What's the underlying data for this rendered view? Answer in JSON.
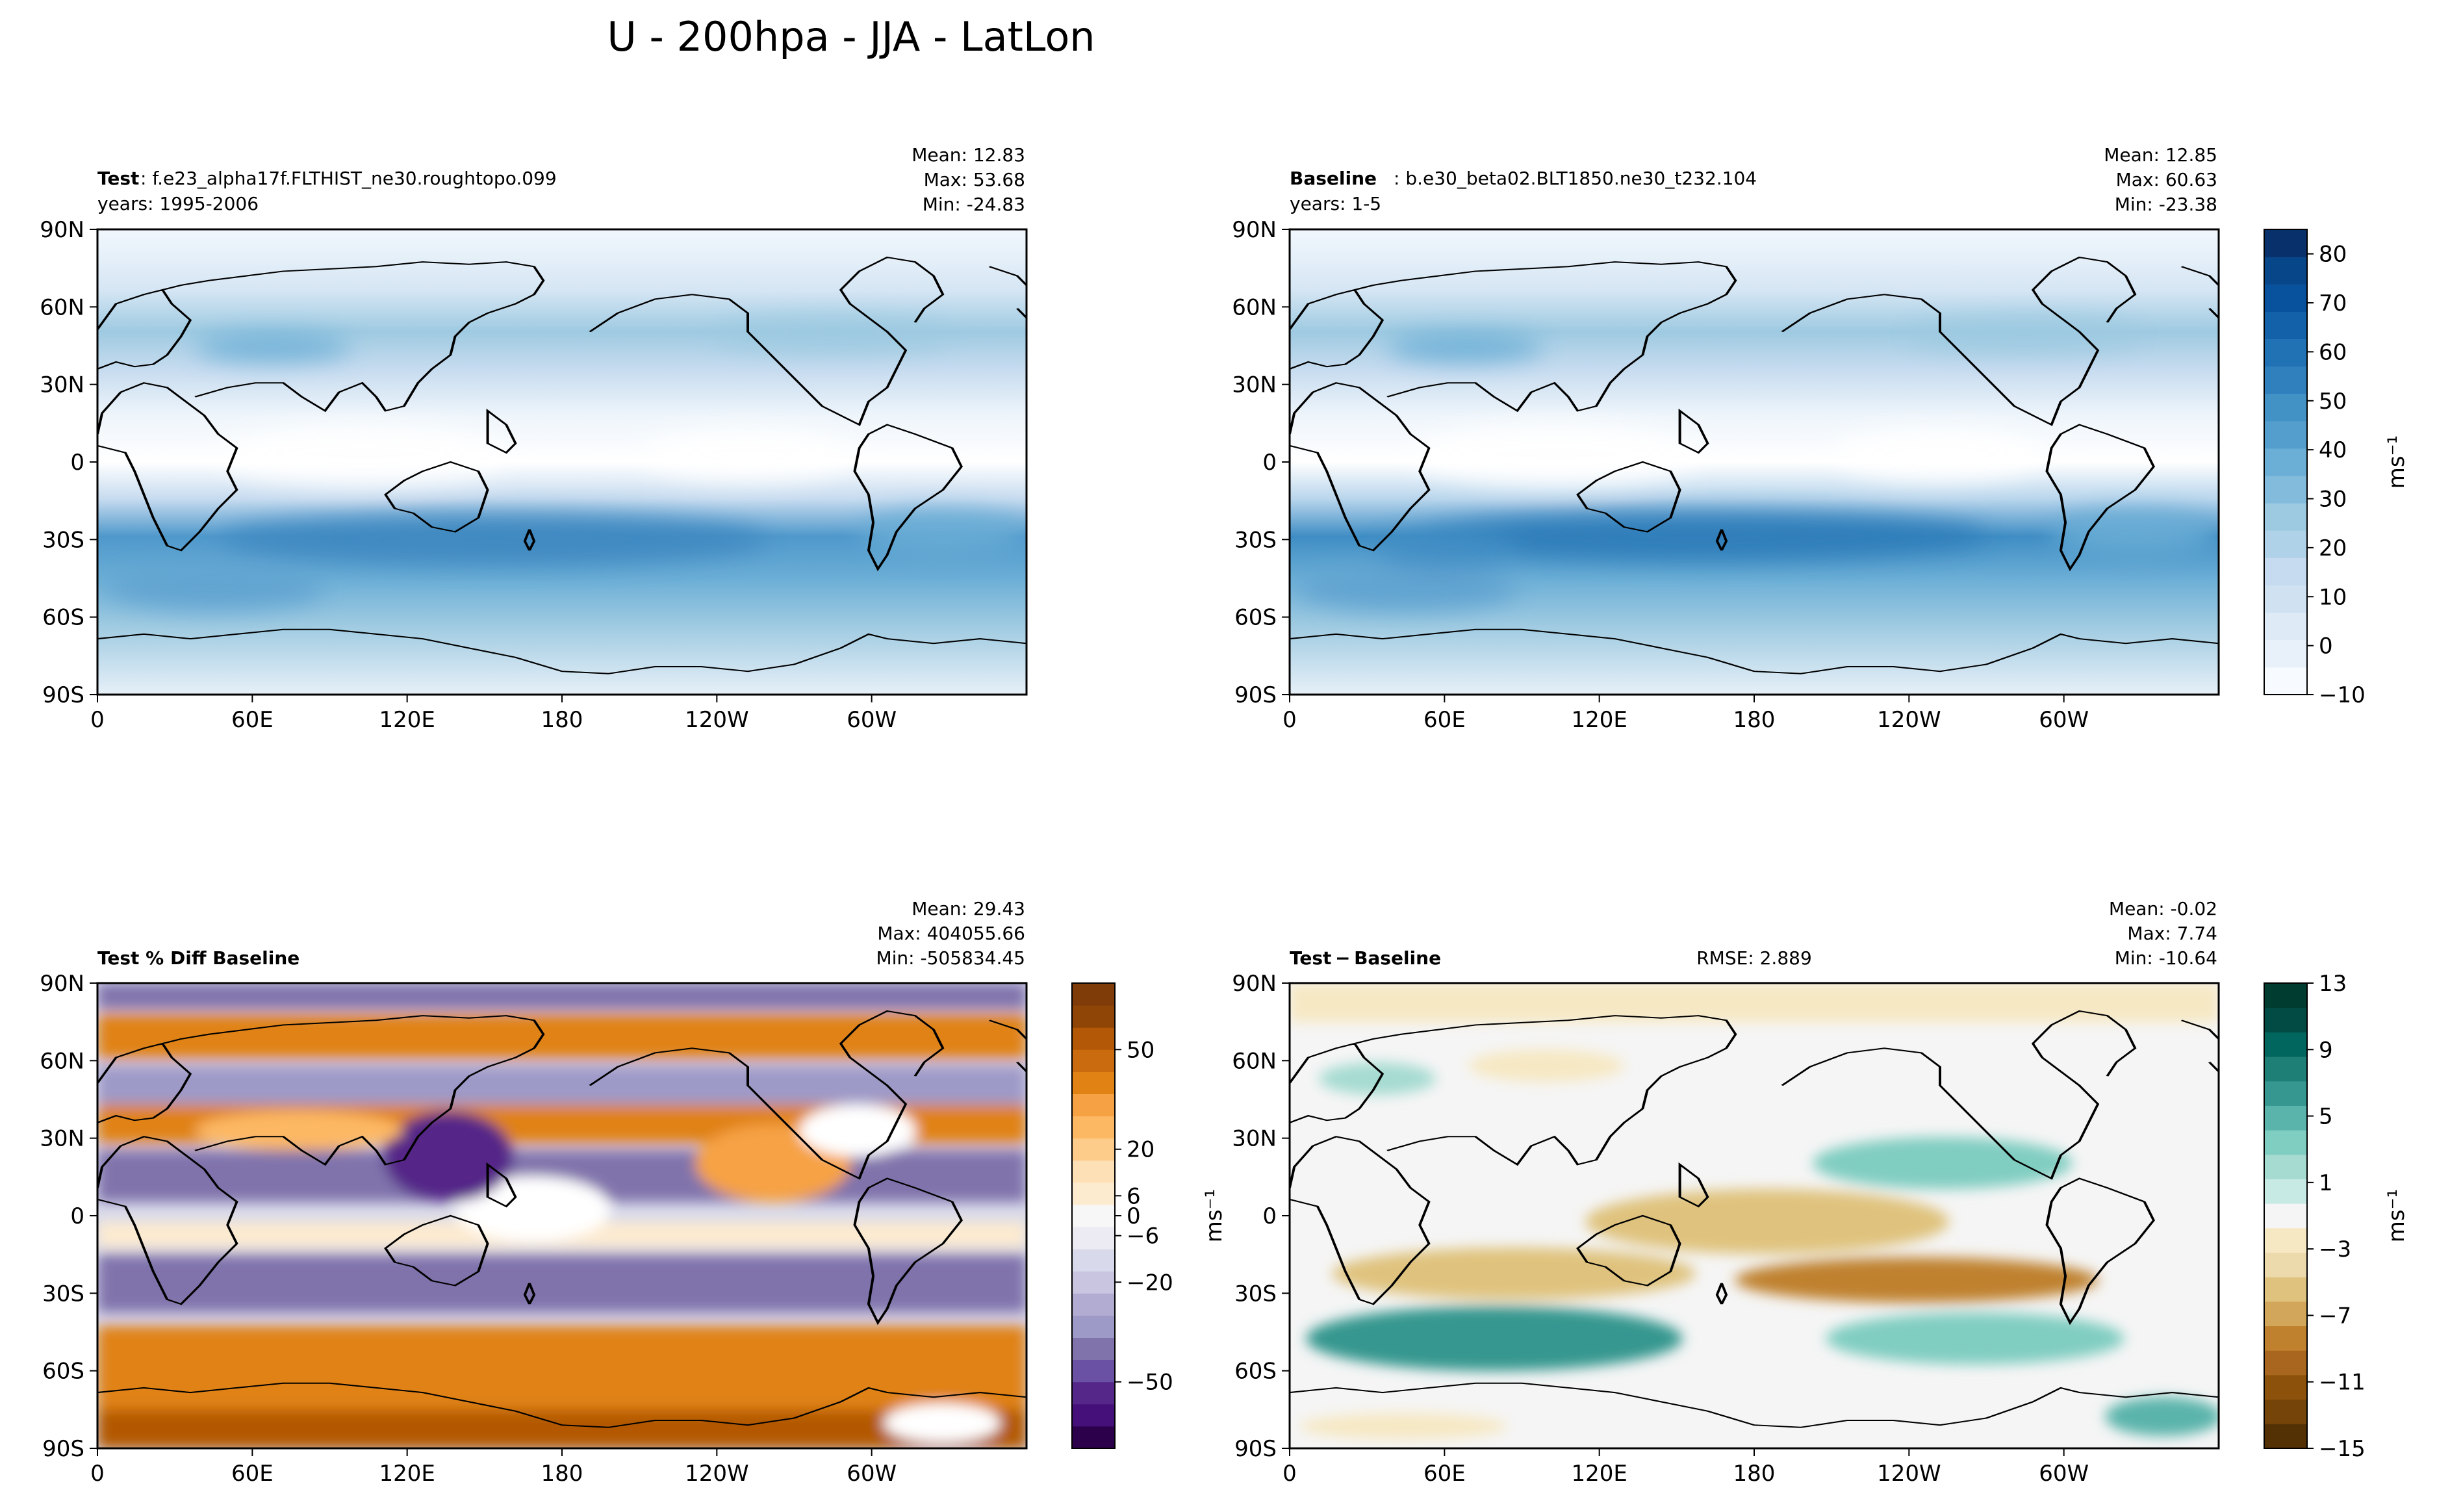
{
  "figure": {
    "title": "U - 200hpa - JJA - LatLon"
  },
  "colors": {
    "blues_scale": [
      "#f7fbff",
      "#e8f1fa",
      "#deebf7",
      "#d0e2f2",
      "#c6dbef",
      "#b0d2e8",
      "#9ecae1",
      "#82bbdb",
      "#6baed6",
      "#539ecd",
      "#4292c6",
      "#3080bd",
      "#2171b5",
      "#1361a9",
      "#08519c",
      "#08468a",
      "#08306b"
    ],
    "puor_scale": [
      "#2d004b",
      "#45107a",
      "#542788",
      "#6a51a3",
      "#8073ac",
      "#9e9ac8",
      "#b2abd2",
      "#c9c5e1",
      "#d8daeb",
      "#eceaf3",
      "#f7f7f7",
      "#fdebd0",
      "#fee0b6",
      "#fdcc8a",
      "#fdb863",
      "#f6a244",
      "#e08214",
      "#c96b0e",
      "#b35806",
      "#8f4505",
      "#7f3b08"
    ],
    "brbg_scale": [
      "#543005",
      "#744409",
      "#8c510a",
      "#a8661e",
      "#bf812d",
      "#d2a65b",
      "#dfc27d",
      "#ecdaac",
      "#f6e8c3",
      "#f5f5f5",
      "#c7eae5",
      "#a6dbd1",
      "#80cdc1",
      "#5ab4ab",
      "#35978f",
      "#1d7f76",
      "#01665e",
      "#014b44",
      "#003c30"
    ]
  },
  "chart_data": [
    {
      "type": "heatmap",
      "panel": "test",
      "title_bold": "Test",
      "title_text": ": f.e23_alpha17f.FLTHIST_ne30.roughtopo.099",
      "subtitle": "years: 1995-2006",
      "stats": {
        "mean": "Mean: 12.83",
        "max": "Max: 53.68",
        "min": "Min: -24.83"
      },
      "xlabel": "",
      "ylabel": "",
      "x_ticks": [
        "0",
        "60E",
        "120E",
        "180",
        "120W",
        "60W"
      ],
      "y_ticks": [
        "90N",
        "60N",
        "30N",
        "0",
        "30S",
        "60S",
        "90S"
      ],
      "xlim": [
        0,
        360
      ],
      "ylim": [
        -90,
        90
      ],
      "colorscale": "blues_scale",
      "clim": [
        -10,
        85
      ],
      "zonal_profile": [
        [
          90,
          4
        ],
        [
          75,
          8
        ],
        [
          60,
          14
        ],
        [
          45,
          24
        ],
        [
          30,
          14
        ],
        [
          15,
          4
        ],
        [
          0,
          -2
        ],
        [
          -15,
          6
        ],
        [
          -25,
          30
        ],
        [
          -35,
          26
        ],
        [
          -45,
          22
        ],
        [
          -60,
          16
        ],
        [
          -75,
          8
        ],
        [
          -90,
          2
        ]
      ]
    },
    {
      "type": "heatmap",
      "panel": "baseline",
      "title_bold": "Baseline",
      "title_text": ": b.e30_beta02.BLT1850.ne30_t232.104",
      "subtitle": "years: 1-5",
      "stats": {
        "mean": "Mean: 12.85",
        "max": "Max: 60.63",
        "min": "Min: -23.38"
      },
      "x_ticks": [
        "0",
        "60E",
        "120E",
        "180",
        "120W",
        "60W"
      ],
      "y_ticks": [
        "90N",
        "60N",
        "30N",
        "0",
        "30S",
        "60S",
        "90S"
      ],
      "xlim": [
        0,
        360
      ],
      "ylim": [
        -90,
        90
      ],
      "colorscale": "blues_scale",
      "clim": [
        -10,
        85
      ],
      "colorbar": {
        "label": "ms⁻¹",
        "ticks": [
          "80",
          "70",
          "60",
          "50",
          "40",
          "30",
          "20",
          "10",
          "0",
          "−10"
        ],
        "values": [
          80,
          70,
          60,
          50,
          40,
          30,
          20,
          10,
          0,
          -10
        ]
      },
      "zonal_profile": [
        [
          90,
          4
        ],
        [
          75,
          8
        ],
        [
          60,
          14
        ],
        [
          45,
          24
        ],
        [
          30,
          14
        ],
        [
          15,
          4
        ],
        [
          0,
          -2
        ],
        [
          -15,
          8
        ],
        [
          -25,
          34
        ],
        [
          -35,
          30
        ],
        [
          -45,
          22
        ],
        [
          -60,
          16
        ],
        [
          -75,
          8
        ],
        [
          -90,
          2
        ]
      ]
    },
    {
      "type": "heatmap",
      "panel": "pctdiff",
      "title_bold": "Test % Diff Baseline",
      "stats": {
        "mean": "Mean: 29.43",
        "max": "Max: 404055.66",
        "min": "Min: -505834.45"
      },
      "x_ticks": [
        "0",
        "60E",
        "120E",
        "180",
        "120W",
        "60W"
      ],
      "y_ticks": [
        "90N",
        "60N",
        "30N",
        "0",
        "30S",
        "60S",
        "90S"
      ],
      "xlim": [
        0,
        360
      ],
      "ylim": [
        -90,
        90
      ],
      "colorscale": "puor_scale",
      "clim": [
        -70,
        70
      ],
      "colorbar": {
        "label": "ms⁻¹",
        "ticks": [
          "50",
          "20",
          "6",
          "0",
          "−6",
          "−20",
          "−50"
        ],
        "values": [
          50,
          20,
          6,
          0,
          -6,
          -20,
          -50
        ]
      }
    },
    {
      "type": "heatmap",
      "panel": "diff",
      "title_bold": "Test − Baseline",
      "rmse": "RMSE: 2.889",
      "stats": {
        "mean": "Mean: -0.02",
        "max": "Max:  7.74",
        "min": "Min: -10.64"
      },
      "x_ticks": [
        "0",
        "60E",
        "120E",
        "180",
        "120W",
        "60W"
      ],
      "y_ticks": [
        "90N",
        "60N",
        "30N",
        "0",
        "30S",
        "60S",
        "90S"
      ],
      "xlim": [
        0,
        360
      ],
      "ylim": [
        -90,
        90
      ],
      "colorscale": "brbg_scale",
      "clim": [
        -15,
        13
      ],
      "colorbar": {
        "label": "ms⁻¹",
        "ticks": [
          "13",
          "9",
          "5",
          "1",
          "−3",
          "−7",
          "−11",
          "−15"
        ],
        "values": [
          13,
          9,
          5,
          1,
          -3,
          -7,
          -11,
          -15
        ]
      }
    }
  ]
}
